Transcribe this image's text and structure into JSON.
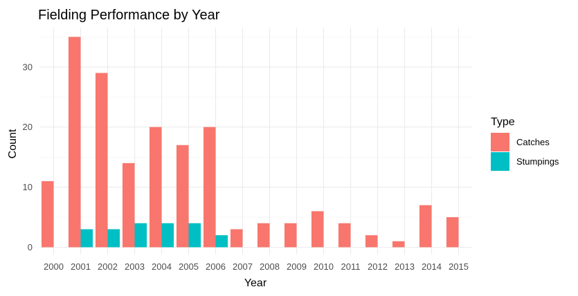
{
  "chart_data": {
    "type": "bar",
    "title": "Fielding Performance by Year",
    "xlabel": "Year",
    "ylabel": "Count",
    "categories": [
      "2000",
      "2001",
      "2002",
      "2003",
      "2004",
      "2005",
      "2006",
      "2007",
      "2008",
      "2009",
      "2010",
      "2011",
      "2012",
      "2013",
      "2014",
      "2015"
    ],
    "series": [
      {
        "name": "Catches",
        "color": "#F8766D",
        "values": [
          11,
          35,
          29,
          14,
          20,
          17,
          20,
          3,
          4,
          4,
          6,
          4,
          2,
          1,
          7,
          5
        ]
      },
      {
        "name": "Stumpings",
        "color": "#00BFC4",
        "values": [
          null,
          3,
          3,
          4,
          4,
          4,
          2,
          null,
          null,
          null,
          null,
          null,
          null,
          null,
          null,
          null
        ]
      }
    ],
    "ylim": [
      0,
      37
    ],
    "yticks": [
      0,
      10,
      20,
      30
    ],
    "grid": true,
    "legend": {
      "title": "Type",
      "position": "right"
    }
  }
}
